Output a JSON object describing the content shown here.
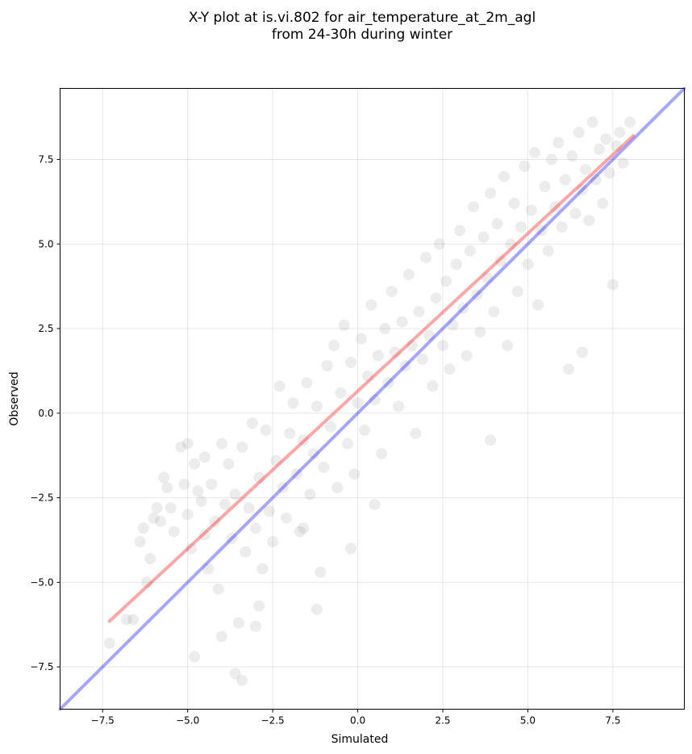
{
  "chart_data": {
    "type": "scatter",
    "title": [
      "X-Y plot at is.vi.802 for air_temperature_at_2m_agl",
      "from 24-30h during winter"
    ],
    "xlabel": "Simulated",
    "ylabel": "Observed",
    "xlim": [
      -8.75,
      9.6
    ],
    "ylim": [
      -8.75,
      9.6
    ],
    "xticks": [
      -7.5,
      -5.0,
      -2.5,
      0.0,
      2.5,
      5.0,
      7.5
    ],
    "xtick_labels": [
      "−7.5",
      "−5.0",
      "−2.5",
      "0.0",
      "2.5",
      "5.0",
      "7.5"
    ],
    "yticks": [
      -7.5,
      -5.0,
      -2.5,
      0.0,
      2.5,
      5.0,
      7.5
    ],
    "ytick_labels": [
      "−7.5",
      "−5.0",
      "−2.5",
      "0.0",
      "2.5",
      "5.0",
      "7.5"
    ],
    "grid": true,
    "point_color": "#404040",
    "lines": [
      {
        "kind": "identity",
        "color": "#0000ff",
        "x": [
          -8.75,
          9.6
        ],
        "y": [
          -8.75,
          9.6
        ]
      },
      {
        "kind": "fit",
        "color": "#ff0000",
        "x": [
          -7.3,
          8.1
        ],
        "y": [
          -6.15,
          8.2
        ]
      }
    ],
    "points": [
      [
        -7.3,
        -6.8
      ],
      [
        -6.8,
        -6.1
      ],
      [
        -6.6,
        -6.1
      ],
      [
        -6.4,
        -3.8
      ],
      [
        -6.3,
        -3.4
      ],
      [
        -6.2,
        -5.0
      ],
      [
        -6.1,
        -4.3
      ],
      [
        -6.0,
        -3.1
      ],
      [
        -5.9,
        -2.8
      ],
      [
        -5.8,
        -3.2
      ],
      [
        -5.7,
        -1.9
      ],
      [
        -5.6,
        -2.2
      ],
      [
        -5.5,
        -2.8
      ],
      [
        -5.4,
        -3.5
      ],
      [
        -5.2,
        -1.0
      ],
      [
        -5.1,
        -2.1
      ],
      [
        -5.0,
        -3.0
      ],
      [
        -5.0,
        -0.9
      ],
      [
        -4.9,
        -4.0
      ],
      [
        -4.8,
        -1.5
      ],
      [
        -4.7,
        -2.3
      ],
      [
        -4.6,
        -2.6
      ],
      [
        -4.5,
        -3.6
      ],
      [
        -4.5,
        -1.3
      ],
      [
        -4.4,
        -4.6
      ],
      [
        -4.3,
        -2.1
      ],
      [
        -4.2,
        -3.2
      ],
      [
        -4.1,
        -5.2
      ],
      [
        -4.0,
        -0.9
      ],
      [
        -3.9,
        -2.7
      ],
      [
        -3.8,
        -1.5
      ],
      [
        -3.7,
        -3.7
      ],
      [
        -3.6,
        -2.4
      ],
      [
        -3.5,
        -6.2
      ],
      [
        -3.4,
        -1.0
      ],
      [
        -3.3,
        -4.1
      ],
      [
        -3.2,
        -2.8
      ],
      [
        -3.1,
        -0.3
      ],
      [
        -3.0,
        -3.4
      ],
      [
        -2.9,
        -1.9
      ],
      [
        -2.8,
        -4.6
      ],
      [
        -2.7,
        -0.5
      ],
      [
        -2.6,
        -2.9
      ],
      [
        -2.5,
        -3.8
      ],
      [
        -2.4,
        -1.4
      ],
      [
        -2.3,
        0.8
      ],
      [
        -2.2,
        -2.2
      ],
      [
        -2.1,
        -3.1
      ],
      [
        -2.0,
        -0.6
      ],
      [
        -1.9,
        0.3
      ],
      [
        -1.8,
        -1.8
      ],
      [
        -1.7,
        -3.5
      ],
      [
        -1.6,
        -0.8
      ],
      [
        -1.5,
        0.9
      ],
      [
        -1.4,
        -2.4
      ],
      [
        -1.3,
        -1.2
      ],
      [
        -1.2,
        0.2
      ],
      [
        -1.1,
        -4.7
      ],
      [
        -1.0,
        -1.6
      ],
      [
        -0.9,
        1.4
      ],
      [
        -0.8,
        -0.4
      ],
      [
        -0.7,
        2.0
      ],
      [
        -0.6,
        -2.2
      ],
      [
        -0.5,
        0.6
      ],
      [
        -0.4,
        2.6
      ],
      [
        -0.3,
        -0.9
      ],
      [
        -0.2,
        1.5
      ],
      [
        -0.1,
        -1.8
      ],
      [
        0.0,
        0.3
      ],
      [
        0.1,
        2.2
      ],
      [
        0.2,
        -0.5
      ],
      [
        0.3,
        1.1
      ],
      [
        0.4,
        3.2
      ],
      [
        0.5,
        0.4
      ],
      [
        0.6,
        1.7
      ],
      [
        0.7,
        -1.2
      ],
      [
        0.8,
        2.5
      ],
      [
        0.9,
        0.9
      ],
      [
        1.0,
        3.6
      ],
      [
        1.1,
        1.8
      ],
      [
        1.2,
        0.2
      ],
      [
        1.3,
        2.7
      ],
      [
        1.4,
        1.4
      ],
      [
        1.5,
        4.1
      ],
      [
        1.6,
        2.0
      ],
      [
        1.7,
        -0.6
      ],
      [
        1.8,
        3.0
      ],
      [
        1.9,
        1.6
      ],
      [
        2.0,
        4.6
      ],
      [
        2.1,
        2.3
      ],
      [
        2.2,
        0.8
      ],
      [
        2.3,
        3.4
      ],
      [
        2.4,
        5.0
      ],
      [
        2.5,
        2.0
      ],
      [
        2.6,
        3.9
      ],
      [
        2.7,
        1.3
      ],
      [
        2.8,
        2.6
      ],
      [
        2.9,
        4.4
      ],
      [
        3.0,
        5.4
      ],
      [
        3.1,
        3.1
      ],
      [
        3.2,
        1.7
      ],
      [
        3.3,
        4.8
      ],
      [
        3.4,
        6.1
      ],
      [
        3.5,
        3.5
      ],
      [
        3.6,
        2.4
      ],
      [
        3.7,
        5.2
      ],
      [
        3.8,
        4.0
      ],
      [
        3.9,
        6.5
      ],
      [
        4.0,
        3.0
      ],
      [
        4.1,
        5.6
      ],
      [
        4.2,
        4.5
      ],
      [
        4.3,
        7.0
      ],
      [
        4.4,
        2.0
      ],
      [
        4.5,
        5.0
      ],
      [
        4.6,
        6.2
      ],
      [
        4.7,
        3.6
      ],
      [
        4.8,
        5.5
      ],
      [
        4.9,
        7.3
      ],
      [
        5.0,
        4.4
      ],
      [
        5.1,
        6.0
      ],
      [
        5.2,
        7.7
      ],
      [
        5.3,
        3.2
      ],
      [
        5.4,
        5.4
      ],
      [
        5.5,
        6.7
      ],
      [
        5.6,
        4.8
      ],
      [
        5.7,
        7.5
      ],
      [
        5.8,
        6.1
      ],
      [
        5.9,
        8.0
      ],
      [
        6.0,
        5.5
      ],
      [
        6.1,
        6.9
      ],
      [
        6.2,
        1.3
      ],
      [
        6.3,
        7.6
      ],
      [
        6.4,
        5.9
      ],
      [
        6.5,
        8.3
      ],
      [
        6.6,
        6.6
      ],
      [
        6.7,
        7.2
      ],
      [
        6.8,
        5.7
      ],
      [
        6.9,
        8.6
      ],
      [
        7.0,
        6.9
      ],
      [
        7.1,
        7.8
      ],
      [
        7.2,
        6.2
      ],
      [
        7.3,
        8.1
      ],
      [
        7.4,
        7.1
      ],
      [
        7.5,
        3.8
      ],
      [
        7.6,
        7.9
      ],
      [
        7.7,
        8.3
      ],
      [
        7.8,
        7.4
      ],
      [
        8.0,
        8.6
      ],
      [
        -3.4,
        -7.9
      ],
      [
        -3.6,
        -7.7
      ],
      [
        -4.8,
        -7.2
      ],
      [
        -4.0,
        -6.6
      ],
      [
        -1.2,
        -5.8
      ],
      [
        -0.2,
        -4.0
      ],
      [
        0.5,
        -2.7
      ],
      [
        3.9,
        -0.8
      ],
      [
        6.6,
        1.8
      ],
      [
        -1.6,
        -3.4
      ],
      [
        -2.9,
        -5.7
      ],
      [
        -3.0,
        -6.3
      ]
    ]
  }
}
